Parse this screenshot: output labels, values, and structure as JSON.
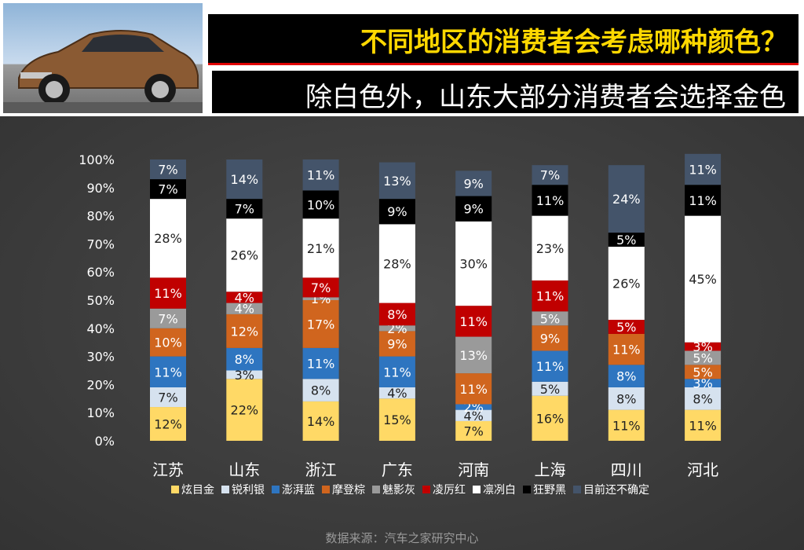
{
  "header": {
    "title": "不同地区的消费者会考虑哪种颜色？",
    "subtitle": "除白色外，山东大部分消费者会选择金色"
  },
  "source": "数据来源：汽车之家研究中心",
  "chart_data": {
    "type": "bar",
    "stacked": true,
    "categories": [
      "江苏",
      "山东",
      "浙江",
      "广东",
      "河南",
      "上海",
      "四川",
      "河北"
    ],
    "ylim": [
      0,
      100
    ],
    "yticks": [
      "0%",
      "10%",
      "20%",
      "30%",
      "40%",
      "50%",
      "60%",
      "70%",
      "80%",
      "90%",
      "100%"
    ],
    "legend_position": "bottom",
    "series": [
      {
        "name": "炫目金",
        "color": "#ffd966",
        "values": [
          12,
          22,
          14,
          15,
          7,
          16,
          11,
          11
        ]
      },
      {
        "name": "锐利银",
        "color": "#d6e2ef",
        "values": [
          7,
          3,
          8,
          4,
          4,
          5,
          8,
          8
        ]
      },
      {
        "name": "澎湃蓝",
        "color": "#2e75c0",
        "values": [
          11,
          8,
          11,
          11,
          2,
          11,
          8,
          3
        ]
      },
      {
        "name": "摩登棕",
        "color": "#d0651e",
        "values": [
          10,
          12,
          17,
          9,
          11,
          9,
          11,
          5
        ]
      },
      {
        "name": "魅影灰",
        "color": "#9a9a9a",
        "values": [
          7,
          4,
          1,
          2,
          13,
          5,
          0,
          5
        ]
      },
      {
        "name": "凌厉红",
        "color": "#c00000",
        "values": [
          11,
          4,
          7,
          8,
          11,
          11,
          5,
          3
        ]
      },
      {
        "name": "凛冽白",
        "color": "#ffffff",
        "values": [
          28,
          26,
          21,
          28,
          30,
          23,
          26,
          45
        ]
      },
      {
        "name": "狂野黑",
        "color": "#000000",
        "values": [
          7,
          7,
          10,
          9,
          9,
          11,
          5,
          11
        ]
      },
      {
        "name": "目前还不确定",
        "color": "#44546a",
        "values": [
          7,
          14,
          11,
          13,
          9,
          7,
          24,
          11
        ]
      }
    ]
  }
}
